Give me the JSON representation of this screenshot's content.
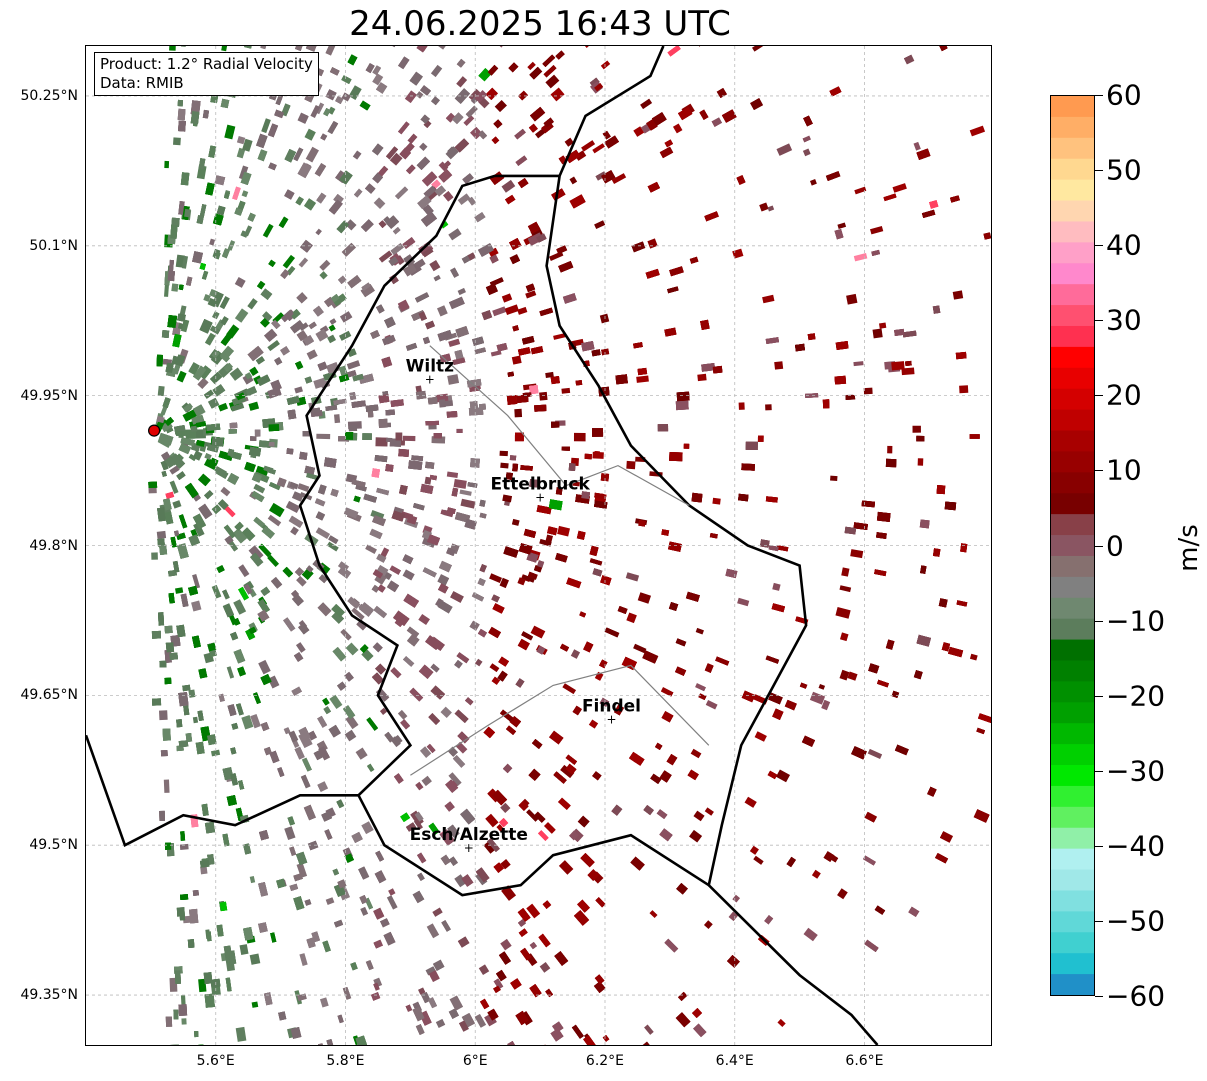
{
  "title": "24.06.2025 16:43 UTC",
  "info": {
    "product": "Product: 1.2° Radial Velocity",
    "source": "Data: RMIB"
  },
  "axes": {
    "lat_ticks": [
      "50.25°N",
      "50.1°N",
      "49.95°N",
      "49.8°N",
      "49.65°N",
      "49.5°N",
      "49.35°N"
    ],
    "lon_ticks": [
      "5.6°E",
      "5.8°E",
      "6°E",
      "6.2°E",
      "6.4°E",
      "6.6°E"
    ],
    "lat_values": [
      50.25,
      50.1,
      49.95,
      49.8,
      49.65,
      49.5,
      49.35
    ],
    "lon_values": [
      5.6,
      5.8,
      6.0,
      6.2,
      6.4,
      6.6
    ],
    "lon_range": [
      5.4,
      6.795
    ],
    "lat_range": [
      49.3,
      50.3
    ],
    "grid": true
  },
  "radar": {
    "lon": 5.505,
    "lat": 49.915,
    "marker_color": "#e00000"
  },
  "cities": [
    {
      "name": "Wiltz",
      "lon": 5.93,
      "lat": 49.966
    },
    {
      "name": "Ettelbruck",
      "lon": 6.1,
      "lat": 49.848
    },
    {
      "name": "Findel",
      "lon": 6.21,
      "lat": 49.626
    },
    {
      "name": "Esch/Alzette",
      "lon": 5.99,
      "lat": 49.497
    }
  ],
  "colorbar": {
    "label": "m/s",
    "min": -60,
    "max": 60,
    "ticks": [
      "60",
      "50",
      "40",
      "30",
      "20",
      "10",
      "0",
      "−10",
      "−20",
      "−30",
      "−40",
      "−50",
      "−60"
    ],
    "tick_values": [
      60,
      50,
      40,
      30,
      20,
      10,
      0,
      -10,
      -20,
      -30,
      -40,
      -50,
      -60
    ],
    "colors": [
      "#ff9a50",
      "#ffae66",
      "#ffc27e",
      "#ffd890",
      "#ffe8a0",
      "#ffd6b0",
      "#ffbcc0",
      "#ffa0c8",
      "#ff88cc",
      "#ff6b9a",
      "#ff5070",
      "#ff3050",
      "#ff0000",
      "#e80000",
      "#d40000",
      "#c00000",
      "#a80000",
      "#980000",
      "#880000",
      "#780000",
      "#884048",
      "#8a5562",
      "#86706f",
      "#808080",
      "#6f8870",
      "#5c7d5c",
      "#007000",
      "#008000",
      "#009000",
      "#00a000",
      "#00b800",
      "#00d000",
      "#00e800",
      "#30f030",
      "#60f060",
      "#90f0a8",
      "#b0f0f0",
      "#a0e8e8",
      "#80e0e0",
      "#60d8d8",
      "#40d0d0",
      "#20c0d0",
      "#2090c8"
    ]
  },
  "colors": {
    "border": "#000000",
    "inner_border": "#808080",
    "grid": "#bbbbbb"
  }
}
